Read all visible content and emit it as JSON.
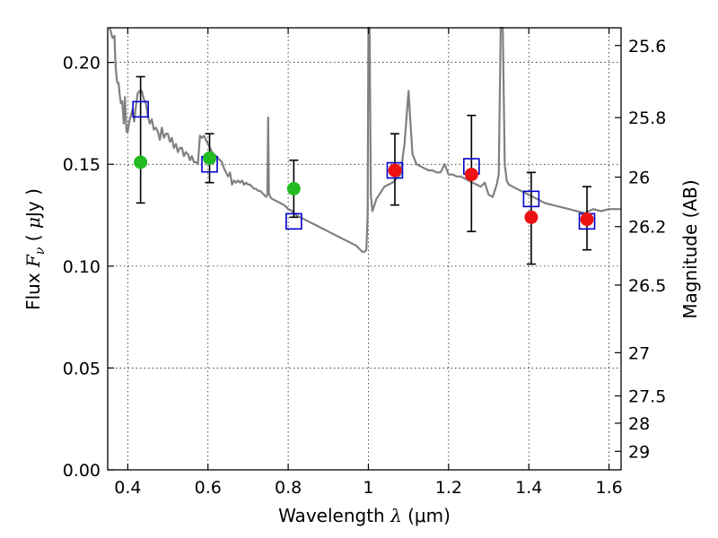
{
  "chart_data": {
    "type": "scatter",
    "title": "",
    "xlabel": "Wavelength  λ (μm)",
    "xlabel_parts": {
      "pre": "Wavelength  ",
      "var": "λ",
      "post": " (μm)"
    },
    "ylabel": "Flux  F_ν  ( μJy )",
    "ylabel_parts": {
      "pre": "Flux  ",
      "var": "F",
      "sub": "ν",
      "mid": "  ( ",
      "mu": "μ",
      "post": "Jy )"
    },
    "y2label": "Magnitude (AB)",
    "xlim": [
      0.35,
      1.63
    ],
    "ylim": [
      0.0,
      0.217
    ],
    "x_ticks": [
      0.4,
      0.6,
      0.8,
      1.0,
      1.2,
      1.4,
      1.6
    ],
    "x_tick_labels": [
      "0.4",
      "0.6",
      "0.8",
      "1",
      "1.2",
      "1.4",
      "1.6"
    ],
    "y_ticks": [
      0.0,
      0.05,
      0.1,
      0.15,
      0.2
    ],
    "y_tick_labels": [
      "0.00",
      "0.05",
      "0.10",
      "0.15",
      "0.20"
    ],
    "y2_ticks": [
      {
        "flux": 0.2083,
        "label": "25.6"
      },
      {
        "flux": 0.1729,
        "label": "25.8"
      },
      {
        "flux": 0.1437,
        "label": "26"
      },
      {
        "flux": 0.1194,
        "label": "26.2"
      },
      {
        "flux": 0.0907,
        "label": "26.5"
      },
      {
        "flux": 0.0575,
        "label": "27"
      },
      {
        "flux": 0.0363,
        "label": "27.5"
      },
      {
        "flux": 0.0229,
        "label": "28"
      },
      {
        "flux": 0.0091,
        "label": "29"
      }
    ],
    "grid": true,
    "colors": {
      "template": "#808080",
      "model": "#0000cc",
      "optical": "#22bb22",
      "nir": "#ee1111",
      "errorbar": "#000000"
    },
    "series": [
      {
        "type": "line",
        "points": [
          [
            0.355,
            0.217
          ],
          [
            0.362,
            0.212
          ],
          [
            0.367,
            0.213
          ],
          [
            0.369,
            0.2
          ],
          [
            0.372,
            0.193
          ],
          [
            0.374,
            0.19
          ],
          [
            0.377,
            0.19
          ],
          [
            0.38,
            0.184
          ],
          [
            0.383,
            0.18
          ],
          [
            0.386,
            0.181
          ],
          [
            0.39,
            0.17
          ],
          [
            0.393,
            0.183
          ],
          [
            0.397,
            0.166
          ],
          [
            0.4,
            0.166
          ],
          [
            0.404,
            0.171
          ],
          [
            0.408,
            0.174
          ],
          [
            0.412,
            0.177
          ],
          [
            0.416,
            0.171
          ],
          [
            0.42,
            0.178
          ],
          [
            0.425,
            0.185
          ],
          [
            0.43,
            0.186
          ],
          [
            0.435,
            0.186
          ],
          [
            0.44,
            0.182
          ],
          [
            0.445,
            0.18
          ],
          [
            0.45,
            0.174
          ],
          [
            0.455,
            0.17
          ],
          [
            0.46,
            0.172
          ],
          [
            0.465,
            0.167
          ],
          [
            0.47,
            0.168
          ],
          [
            0.475,
            0.166
          ],
          [
            0.48,
            0.162
          ],
          [
            0.485,
            0.168
          ],
          [
            0.49,
            0.163
          ],
          [
            0.495,
            0.165
          ],
          [
            0.5,
            0.165
          ],
          [
            0.505,
            0.161
          ],
          [
            0.51,
            0.163
          ],
          [
            0.515,
            0.158
          ],
          [
            0.52,
            0.16
          ],
          [
            0.525,
            0.156
          ],
          [
            0.53,
            0.158
          ],
          [
            0.535,
            0.158
          ],
          [
            0.54,
            0.154
          ],
          [
            0.545,
            0.156
          ],
          [
            0.55,
            0.155
          ],
          [
            0.555,
            0.152
          ],
          [
            0.56,
            0.154
          ],
          [
            0.565,
            0.151
          ],
          [
            0.57,
            0.151
          ],
          [
            0.575,
            0.15
          ],
          [
            0.58,
            0.164
          ],
          [
            0.585,
            0.163
          ],
          [
            0.59,
            0.164
          ],
          [
            0.595,
            0.162
          ],
          [
            0.6,
            0.16
          ],
          [
            0.605,
            0.158
          ],
          [
            0.61,
            0.156
          ],
          [
            0.615,
            0.155
          ],
          [
            0.62,
            0.154
          ],
          [
            0.625,
            0.153
          ],
          [
            0.63,
            0.152
          ],
          [
            0.635,
            0.151
          ],
          [
            0.64,
            0.148
          ],
          [
            0.645,
            0.146
          ],
          [
            0.65,
            0.144
          ],
          [
            0.655,
            0.146
          ],
          [
            0.66,
            0.14
          ],
          [
            0.665,
            0.142
          ],
          [
            0.67,
            0.141
          ],
          [
            0.675,
            0.142
          ],
          [
            0.68,
            0.141
          ],
          [
            0.685,
            0.142
          ],
          [
            0.69,
            0.14
          ],
          [
            0.695,
            0.141
          ],
          [
            0.7,
            0.14
          ],
          [
            0.705,
            0.14
          ],
          [
            0.71,
            0.139
          ],
          [
            0.715,
            0.138
          ],
          [
            0.72,
            0.138
          ],
          [
            0.725,
            0.137
          ],
          [
            0.73,
            0.137
          ],
          [
            0.735,
            0.136
          ],
          [
            0.74,
            0.135
          ],
          [
            0.745,
            0.134
          ],
          [
            0.748,
            0.135
          ],
          [
            0.75,
            0.173
          ],
          [
            0.752,
            0.136
          ],
          [
            0.755,
            0.134
          ],
          [
            0.76,
            0.133
          ],
          [
            0.77,
            0.132
          ],
          [
            0.78,
            0.131
          ],
          [
            0.79,
            0.13
          ],
          [
            0.8,
            0.128
          ],
          [
            0.81,
            0.127
          ],
          [
            0.82,
            0.125
          ],
          [
            0.83,
            0.124
          ],
          [
            0.84,
            0.123
          ],
          [
            0.85,
            0.122
          ],
          [
            0.86,
            0.121
          ],
          [
            0.87,
            0.12
          ],
          [
            0.88,
            0.119
          ],
          [
            0.89,
            0.118
          ],
          [
            0.9,
            0.117
          ],
          [
            0.91,
            0.116
          ],
          [
            0.92,
            0.115
          ],
          [
            0.93,
            0.114
          ],
          [
            0.94,
            0.113
          ],
          [
            0.95,
            0.112
          ],
          [
            0.96,
            0.111
          ],
          [
            0.97,
            0.11
          ],
          [
            0.975,
            0.109
          ],
          [
            0.98,
            0.108
          ],
          [
            0.985,
            0.107
          ],
          [
            0.99,
            0.107
          ],
          [
            0.995,
            0.108
          ],
          [
            0.998,
            0.125
          ],
          [
            1.0,
            0.217
          ],
          [
            1.003,
            0.217
          ],
          [
            1.006,
            0.135
          ],
          [
            1.01,
            0.127
          ],
          [
            1.015,
            0.13
          ],
          [
            1.02,
            0.133
          ],
          [
            1.03,
            0.136
          ],
          [
            1.04,
            0.139
          ],
          [
            1.05,
            0.14
          ],
          [
            1.06,
            0.141
          ],
          [
            1.07,
            0.143
          ],
          [
            1.08,
            0.145
          ],
          [
            1.09,
            0.16
          ],
          [
            1.1,
            0.186
          ],
          [
            1.105,
            0.17
          ],
          [
            1.11,
            0.155
          ],
          [
            1.12,
            0.15
          ],
          [
            1.13,
            0.149
          ],
          [
            1.14,
            0.148
          ],
          [
            1.15,
            0.147
          ],
          [
            1.16,
            0.147
          ],
          [
            1.17,
            0.146
          ],
          [
            1.18,
            0.146
          ],
          [
            1.19,
            0.15
          ],
          [
            1.2,
            0.145
          ],
          [
            1.21,
            0.145
          ],
          [
            1.22,
            0.144
          ],
          [
            1.23,
            0.144
          ],
          [
            1.24,
            0.143
          ],
          [
            1.25,
            0.142
          ],
          [
            1.26,
            0.141
          ],
          [
            1.27,
            0.14
          ],
          [
            1.28,
            0.139
          ],
          [
            1.29,
            0.141
          ],
          [
            1.3,
            0.135
          ],
          [
            1.31,
            0.134
          ],
          [
            1.32,
            0.14
          ],
          [
            1.325,
            0.145
          ],
          [
            1.33,
            0.217
          ],
          [
            1.335,
            0.217
          ],
          [
            1.34,
            0.15
          ],
          [
            1.345,
            0.142
          ],
          [
            1.35,
            0.14
          ],
          [
            1.36,
            0.139
          ],
          [
            1.37,
            0.138
          ],
          [
            1.38,
            0.137
          ],
          [
            1.39,
            0.136
          ],
          [
            1.4,
            0.135
          ],
          [
            1.42,
            0.133
          ],
          [
            1.44,
            0.131
          ],
          [
            1.46,
            0.13
          ],
          [
            1.48,
            0.129
          ],
          [
            1.5,
            0.128
          ],
          [
            1.52,
            0.127
          ],
          [
            1.54,
            0.126
          ],
          [
            1.56,
            0.128
          ],
          [
            1.58,
            0.127
          ],
          [
            1.6,
            0.128
          ],
          [
            1.63,
            0.128
          ]
        ]
      },
      {
        "type": "scatter",
        "points": [
          {
            "x": 0.432,
            "y": 0.177
          },
          {
            "x": 0.604,
            "y": 0.15
          },
          {
            "x": 0.814,
            "y": 0.122
          },
          {
            "x": 1.066,
            "y": 0.147
          },
          {
            "x": 1.257,
            "y": 0.149
          },
          {
            "x": 1.406,
            "y": 0.133
          },
          {
            "x": 1.545,
            "y": 0.122
          }
        ]
      },
      {
        "type": "scatter",
        "points": [
          {
            "x": 0.432,
            "y": 0.151,
            "yerr_low": 0.131,
            "yerr_high": 0.193
          },
          {
            "x": 0.604,
            "y": 0.153,
            "yerr_low": 0.141,
            "yerr_high": 0.165
          },
          {
            "x": 0.814,
            "y": 0.138,
            "yerr_low": 0.124,
            "yerr_high": 0.152
          }
        ]
      },
      {
        "type": "scatter",
        "points": [
          {
            "x": 1.066,
            "y": 0.147,
            "yerr_low": 0.13,
            "yerr_high": 0.165
          },
          {
            "x": 1.257,
            "y": 0.145,
            "yerr_low": 0.117,
            "yerr_high": 0.174
          },
          {
            "x": 1.406,
            "y": 0.124,
            "yerr_low": 0.101,
            "yerr_high": 0.146
          },
          {
            "x": 1.545,
            "y": 0.123,
            "yerr_low": 0.108,
            "yerr_high": 0.139
          }
        ]
      }
    ]
  }
}
